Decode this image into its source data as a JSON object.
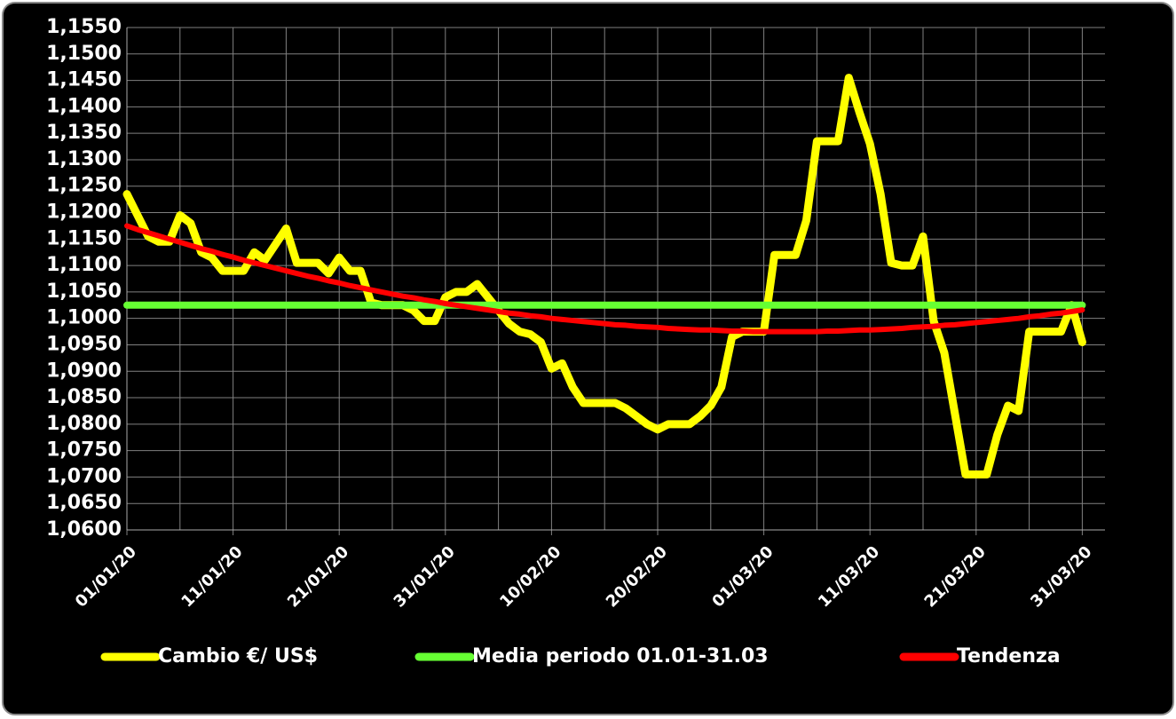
{
  "chart_data": {
    "type": "line",
    "categories": [
      "01/01/20",
      null,
      null,
      null,
      null,
      null,
      null,
      null,
      null,
      null,
      "11/01/20",
      null,
      null,
      null,
      null,
      null,
      null,
      null,
      null,
      null,
      "21/01/20",
      null,
      null,
      null,
      null,
      null,
      null,
      null,
      null,
      null,
      "31/01/20",
      null,
      null,
      null,
      null,
      null,
      null,
      null,
      null,
      null,
      "10/02/20",
      null,
      null,
      null,
      null,
      null,
      null,
      null,
      null,
      null,
      "20/02/20",
      null,
      null,
      null,
      null,
      null,
      null,
      null,
      null,
      null,
      "01/03/20",
      null,
      null,
      null,
      null,
      null,
      null,
      null,
      null,
      null,
      "11/03/20",
      null,
      null,
      null,
      null,
      null,
      null,
      null,
      null,
      null,
      "21/03/20",
      null,
      null,
      null,
      null,
      null,
      null,
      null,
      null,
      null,
      "31/03/20"
    ],
    "series": [
      {
        "name": "Cambio €/ US$",
        "color": "#ffff00",
        "values": [
          1.1235,
          1.1195,
          1.1155,
          1.1145,
          1.1145,
          1.1195,
          1.118,
          1.1125,
          1.1115,
          1.109,
          1.109,
          1.109,
          1.1125,
          1.111,
          1.114,
          1.117,
          1.1105,
          1.1105,
          1.1105,
          1.1085,
          1.1115,
          1.109,
          1.109,
          1.103,
          1.1025,
          1.1025,
          1.1025,
          1.1015,
          1.0995,
          1.0995,
          1.104,
          1.105,
          1.105,
          1.1065,
          1.104,
          1.1015,
          1.099,
          1.0975,
          1.097,
          1.0955,
          1.0905,
          1.0915,
          1.087,
          1.084,
          1.084,
          1.084,
          1.084,
          1.083,
          1.0815,
          1.08,
          1.079,
          1.08,
          1.08,
          1.08,
          1.0815,
          1.0835,
          1.087,
          1.0965,
          1.0975,
          1.0975,
          1.0975,
          1.112,
          1.112,
          1.112,
          1.1185,
          1.1335,
          1.1335,
          1.1335,
          1.1455,
          1.139,
          1.133,
          1.1235,
          1.1105,
          1.11,
          1.11,
          1.1155,
          1.0995,
          1.0935,
          1.082,
          1.0705,
          1.0705,
          1.0705,
          1.078,
          1.0835,
          1.0825,
          1.0975,
          1.0975,
          1.0975,
          1.0975,
          1.1025,
          1.0955
        ]
      },
      {
        "name": "Media periodo 01.01-31.03",
        "color": "#66ff33",
        "values": [
          1.1025,
          1.1025,
          1.1025,
          1.1025,
          1.1025,
          1.1025,
          1.1025,
          1.1025,
          1.1025,
          1.1025,
          1.1025,
          1.1025,
          1.1025,
          1.1025,
          1.1025,
          1.1025,
          1.1025,
          1.1025,
          1.1025,
          1.1025,
          1.1025,
          1.1025,
          1.1025,
          1.1025,
          1.1025,
          1.1025,
          1.1025,
          1.1025,
          1.1025,
          1.1025,
          1.1025,
          1.1025,
          1.1025,
          1.1025,
          1.1025,
          1.1025,
          1.1025,
          1.1025,
          1.1025,
          1.1025,
          1.1025,
          1.1025,
          1.1025,
          1.1025,
          1.1025,
          1.1025,
          1.1025,
          1.1025,
          1.1025,
          1.1025,
          1.1025,
          1.1025,
          1.1025,
          1.1025,
          1.1025,
          1.1025,
          1.1025,
          1.1025,
          1.1025,
          1.1025,
          1.1025,
          1.1025,
          1.1025,
          1.1025,
          1.1025,
          1.1025,
          1.1025,
          1.1025,
          1.1025,
          1.1025,
          1.1025,
          1.1025,
          1.1025,
          1.1025,
          1.1025,
          1.1025,
          1.1025,
          1.1025,
          1.1025,
          1.1025,
          1.1025,
          1.1025,
          1.1025,
          1.1025,
          1.1025,
          1.1025,
          1.1025,
          1.1025,
          1.1025,
          1.1025,
          1.1025
        ]
      },
      {
        "name": "Tendenza",
        "color": "#ff0000",
        "values": [
          1.1175,
          1.1168,
          1.1162,
          1.1156,
          1.115,
          1.1144,
          1.1138,
          1.1132,
          1.1127,
          1.1121,
          1.1116,
          1.111,
          1.1105,
          1.11,
          1.1095,
          1.109,
          1.1085,
          1.108,
          1.1076,
          1.1071,
          1.1067,
          1.1062,
          1.1058,
          1.1054,
          1.105,
          1.1046,
          1.1042,
          1.1039,
          1.1035,
          1.1032,
          1.1028,
          1.1025,
          1.1022,
          1.1019,
          1.1016,
          1.1013,
          1.101,
          1.1008,
          1.1005,
          1.1003,
          1.1,
          1.0998,
          1.0996,
          1.0994,
          1.0992,
          1.099,
          1.0988,
          1.0987,
          1.0985,
          1.0984,
          1.0983,
          1.0981,
          1.098,
          1.0979,
          1.0978,
          1.0978,
          1.0977,
          1.0976,
          1.0976,
          1.0975,
          1.0975,
          1.0975,
          1.0975,
          1.0975,
          1.0975,
          1.0975,
          1.0976,
          1.0976,
          1.0977,
          1.0978,
          1.0978,
          1.0979,
          1.098,
          1.0981,
          1.0983,
          1.0984,
          1.0985,
          1.0987,
          1.0988,
          1.099,
          1.0992,
          1.0994,
          1.0996,
          1.0998,
          1.1,
          1.1003,
          1.1005,
          1.1008,
          1.101,
          1.1013,
          1.1016
        ]
      }
    ],
    "ylim": [
      1.06,
      1.155
    ],
    "yticks": [
      {
        "value": 1.06,
        "label": "1,0600"
      },
      {
        "value": 1.065,
        "label": "1,0650"
      },
      {
        "value": 1.07,
        "label": "1,0700"
      },
      {
        "value": 1.075,
        "label": "1,0750"
      },
      {
        "value": 1.08,
        "label": "1,0800"
      },
      {
        "value": 1.085,
        "label": "1,0850"
      },
      {
        "value": 1.09,
        "label": "1,0900"
      },
      {
        "value": 1.095,
        "label": "1,0950"
      },
      {
        "value": 1.1,
        "label": "1,1000"
      },
      {
        "value": 1.105,
        "label": "1,1050"
      },
      {
        "value": 1.11,
        "label": "1,1100"
      },
      {
        "value": 1.115,
        "label": "1,1150"
      },
      {
        "value": 1.12,
        "label": "1,1200"
      },
      {
        "value": 1.125,
        "label": "1,1250"
      },
      {
        "value": 1.13,
        "label": "1,1300"
      },
      {
        "value": 1.135,
        "label": "1,1350"
      },
      {
        "value": 1.14,
        "label": "1,1400"
      },
      {
        "value": 1.145,
        "label": "1,1450"
      },
      {
        "value": 1.15,
        "label": "1,1500"
      },
      {
        "value": 1.155,
        "label": "1,1550"
      }
    ],
    "grid": true,
    "legend": "bottom"
  }
}
